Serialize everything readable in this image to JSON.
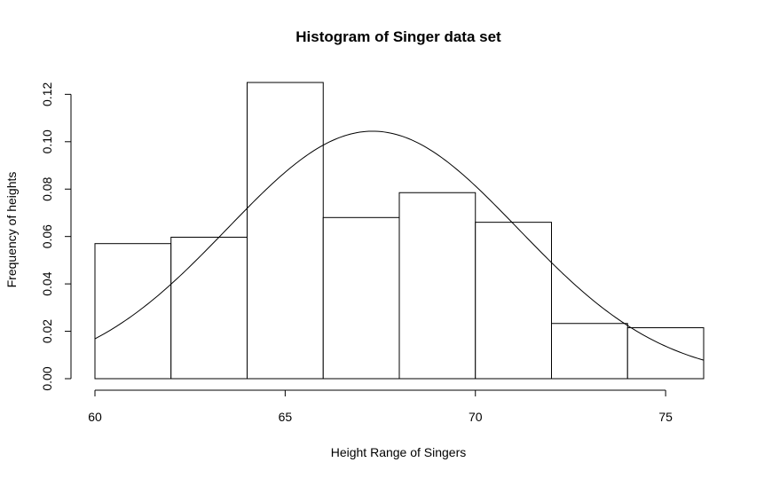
{
  "chart_data": {
    "type": "bar",
    "title": "Histogram of Singer data set",
    "xlabel": "Height Range of Singers",
    "ylabel": "Frequency of heights",
    "xlim": [
      60,
      76
    ],
    "ylim": [
      0,
      0.125
    ],
    "bins": [
      {
        "from": 60,
        "to": 62,
        "value": 0.057
      },
      {
        "from": 62,
        "to": 64,
        "value": 0.0597
      },
      {
        "from": 64,
        "to": 66,
        "value": 0.125
      },
      {
        "from": 66,
        "to": 68,
        "value": 0.068
      },
      {
        "from": 68,
        "to": 70,
        "value": 0.0785
      },
      {
        "from": 70,
        "to": 72,
        "value": 0.066
      },
      {
        "from": 72,
        "to": 74,
        "value": 0.0233
      },
      {
        "from": 74,
        "to": 76,
        "value": 0.0215
      }
    ],
    "x_ticks": [
      60,
      65,
      70,
      75
    ],
    "x_tick_labels": [
      "60",
      "65",
      "70",
      "75"
    ],
    "y_ticks": [
      0,
      0.02,
      0.04,
      0.06,
      0.08,
      0.1,
      0.12
    ],
    "y_tick_labels": [
      "0.00",
      "0.02",
      "0.04",
      "0.06",
      "0.08",
      "0.10",
      "0.12"
    ],
    "density_curve": {
      "type": "normal",
      "mean": 67.3,
      "sd": 3.82
    }
  }
}
